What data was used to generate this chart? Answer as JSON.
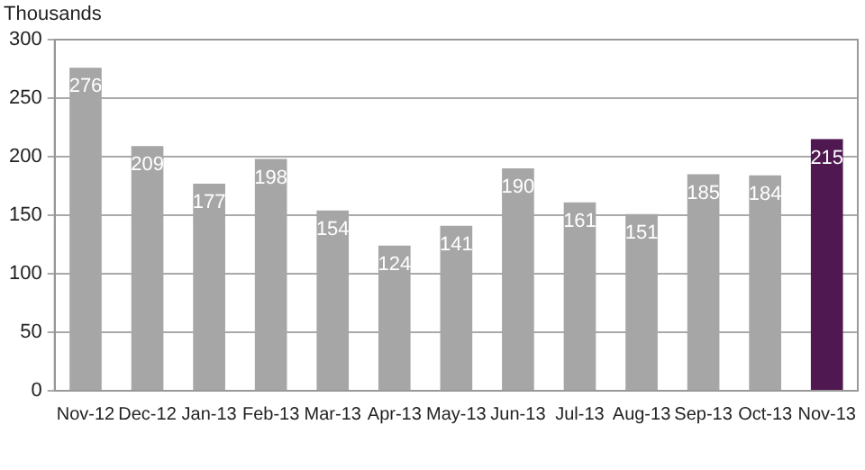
{
  "chart_data": {
    "type": "bar",
    "ylabel": "Thousands",
    "categories": [
      "Nov-12",
      "Dec-12",
      "Jan-13",
      "Feb-13",
      "Mar-13",
      "Apr-13",
      "May-13",
      "Jun-13",
      "Jul-13",
      "Aug-13",
      "Sep-13",
      "Oct-13",
      "Nov-13"
    ],
    "values": [
      276,
      209,
      177,
      198,
      154,
      124,
      141,
      190,
      161,
      151,
      185,
      184,
      215
    ],
    "colors": [
      "#a6a6a6",
      "#a6a6a6",
      "#a6a6a6",
      "#a6a6a6",
      "#a6a6a6",
      "#a6a6a6",
      "#a6a6a6",
      "#a6a6a6",
      "#a6a6a6",
      "#a6a6a6",
      "#a6a6a6",
      "#a6a6a6",
      "#4f1850"
    ],
    "ylim": [
      0,
      300
    ],
    "yticks": [
      0,
      50,
      100,
      150,
      200,
      250,
      300
    ],
    "grid": "y",
    "data_labels": true
  }
}
